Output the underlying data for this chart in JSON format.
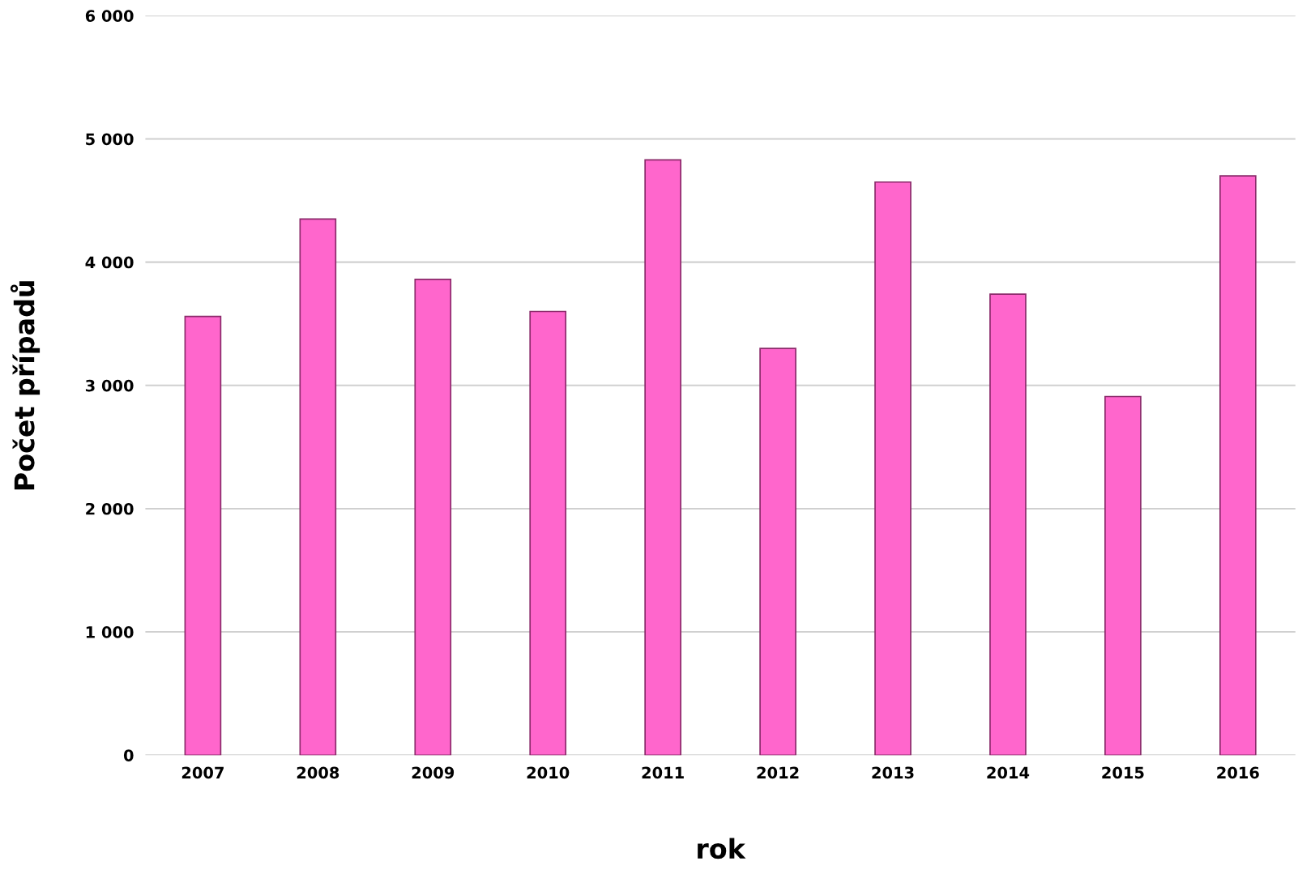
{
  "chart_data": {
    "type": "bar",
    "xlabel": "rok",
    "ylabel": "Počet případů",
    "categories": [
      "2007",
      "2008",
      "2009",
      "2010",
      "2011",
      "2012",
      "2013",
      "2014",
      "2015",
      "2016"
    ],
    "values": [
      3560,
      4350,
      3860,
      3600,
      4830,
      3300,
      4650,
      3740,
      2910,
      4700
    ],
    "color": "#ff66cc",
    "ylim": [
      0,
      6000
    ],
    "yticks": [
      0,
      {
        "value": 1000,
        "label": "1 000"
      },
      {
        "value": 2000,
        "label": "2 000"
      },
      {
        "value": 3000,
        "label": "3 000"
      },
      {
        "value": 4000,
        "label": "4 000"
      },
      {
        "value": 5000,
        "label": "5 000"
      },
      {
        "value": 6000,
        "label": "6 000"
      }
    ],
    "grid": "y"
  }
}
